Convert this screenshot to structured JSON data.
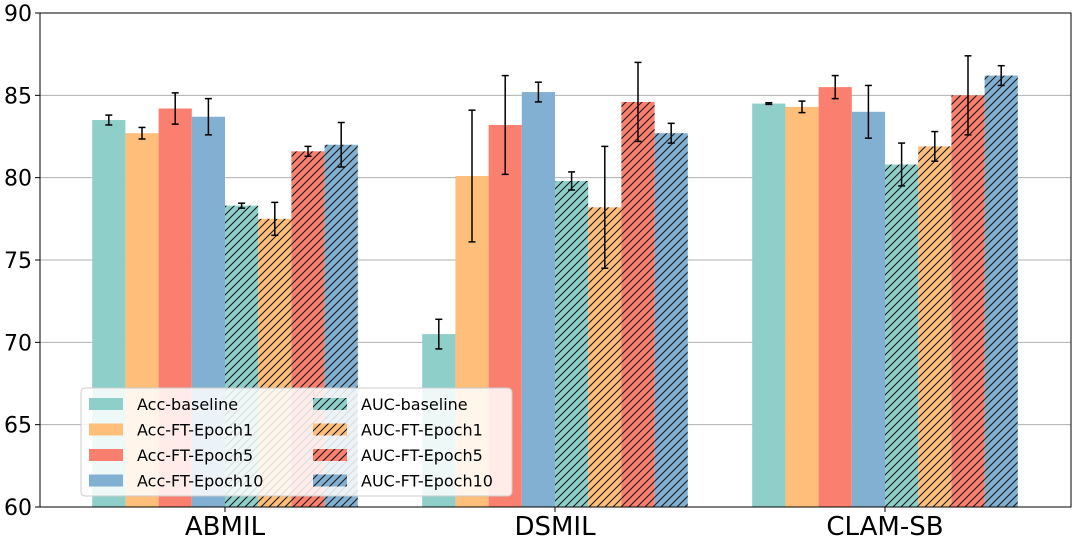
{
  "chart_data": {
    "type": "bar",
    "categories": [
      "ABMIL",
      "DSMIL",
      "CLAM-SB"
    ],
    "ylim": [
      60,
      90
    ],
    "yticks": [
      60,
      65,
      70,
      75,
      80,
      85,
      90
    ],
    "grid": "horizontal",
    "legend_placement": "lower-left",
    "legend_ncol": 2,
    "series": [
      {
        "name": "Acc-baseline",
        "color": "#8ecfc9",
        "hatch": false,
        "values": [
          83.5,
          70.5,
          84.5
        ],
        "errors": [
          0.3,
          0.9,
          0.05
        ]
      },
      {
        "name": "Acc-FT-Epoch1",
        "color": "#ffbe7a",
        "hatch": false,
        "values": [
          82.7,
          80.1,
          84.3
        ],
        "errors": [
          0.35,
          4.0,
          0.35
        ]
      },
      {
        "name": "Acc-FT-Epoch5",
        "color": "#fa7f6f",
        "hatch": false,
        "values": [
          84.2,
          83.2,
          85.5
        ],
        "errors": [
          0.95,
          3.0,
          0.7
        ]
      },
      {
        "name": "Acc-FT-Epoch10",
        "color": "#82b0d2",
        "hatch": false,
        "values": [
          83.7,
          85.2,
          84.0
        ],
        "errors": [
          1.1,
          0.6,
          1.6
        ]
      },
      {
        "name": "AUC-baseline",
        "color": "#8ecfc9",
        "hatch": true,
        "values": [
          78.3,
          79.8,
          80.8
        ],
        "errors": [
          0.15,
          0.55,
          1.3
        ]
      },
      {
        "name": "AUC-FT-Epoch1",
        "color": "#ffbe7a",
        "hatch": true,
        "values": [
          77.5,
          78.2,
          81.9
        ],
        "errors": [
          1.0,
          3.7,
          0.9
        ]
      },
      {
        "name": "AUC-FT-Epoch5",
        "color": "#fa7f6f",
        "hatch": true,
        "values": [
          81.6,
          84.6,
          85.0
        ],
        "errors": [
          0.3,
          2.4,
          2.4
        ]
      },
      {
        "name": "AUC-FT-Epoch10",
        "color": "#82b0d2",
        "hatch": true,
        "values": [
          82.0,
          82.7,
          86.2
        ],
        "errors": [
          1.35,
          0.6,
          0.6
        ]
      }
    ]
  }
}
